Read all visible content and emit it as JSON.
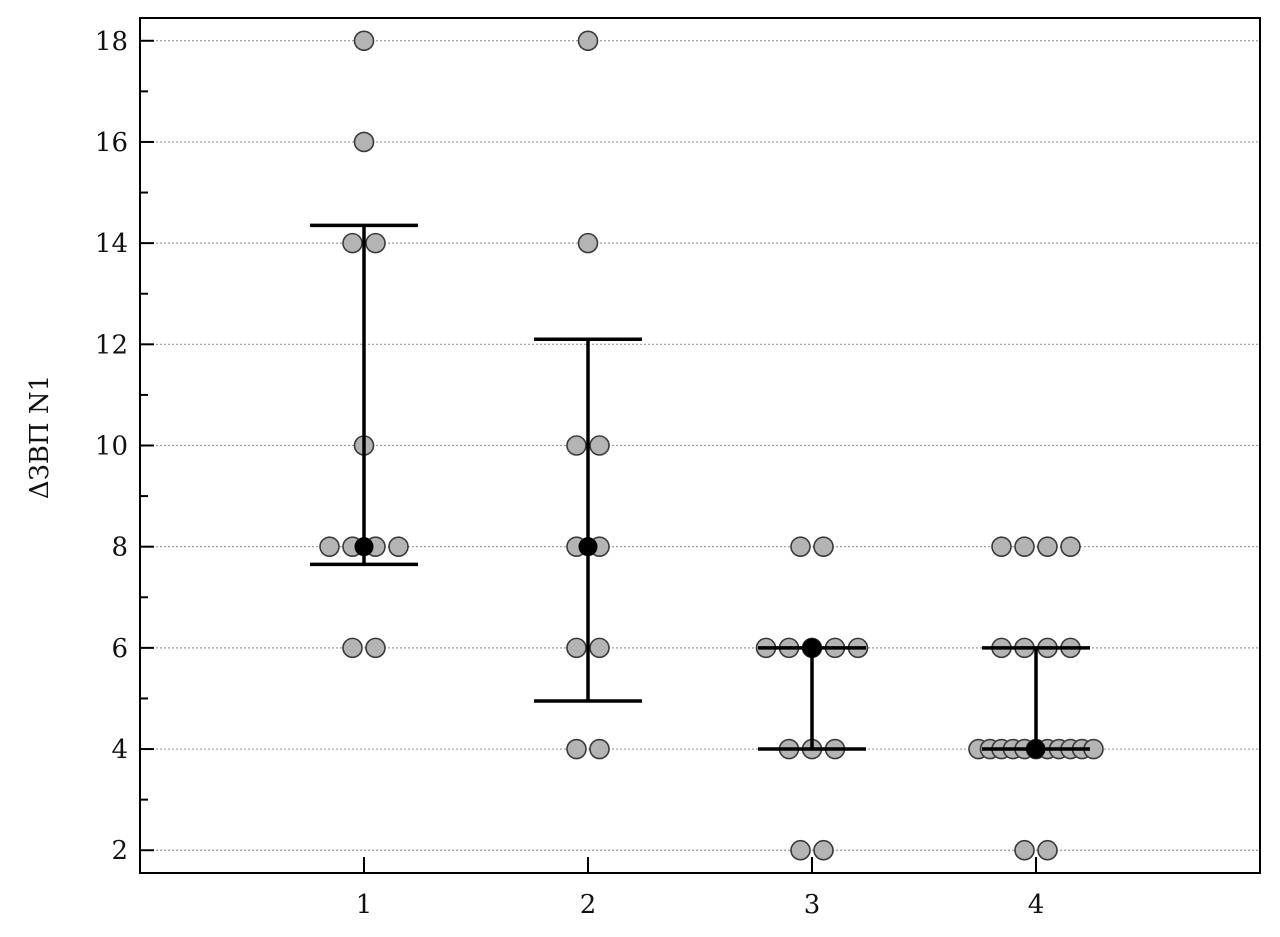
{
  "chart_data": {
    "type": "scatter",
    "ylabel": "ΔЗВП N1",
    "ylim": [
      1.55,
      18.45
    ],
    "yticks_major": [
      2,
      4,
      6,
      8,
      10,
      12,
      14,
      16,
      18
    ],
    "ytick_labels": [
      "2",
      "4",
      "6",
      "8",
      "10",
      "12",
      "14",
      "16",
      "18"
    ],
    "yticks_minor": [
      3,
      5,
      7,
      9,
      11,
      13,
      15,
      17
    ],
    "grid": "horizontal dotted at major ticks",
    "xlim": [
      0.0,
      5.0
    ],
    "categories": [
      "1",
      "2",
      "3",
      "4"
    ],
    "groups": [
      {
        "category": "1",
        "points": [
          {
            "y": 18,
            "offsets": [
              0
            ]
          },
          {
            "y": 16,
            "offsets": [
              0
            ]
          },
          {
            "y": 14,
            "offsets": [
              -0.5,
              0.5
            ]
          },
          {
            "y": 10,
            "offsets": [
              0
            ]
          },
          {
            "y": 8,
            "offsets": [
              -1.5,
              -0.5,
              0.5,
              1.5
            ]
          },
          {
            "y": 6,
            "offsets": [
              -0.5,
              0.5
            ]
          }
        ],
        "median": 8,
        "lower": 7.65,
        "upper": 14.35
      },
      {
        "category": "2",
        "points": [
          {
            "y": 18,
            "offsets": [
              0
            ]
          },
          {
            "y": 14,
            "offsets": [
              0
            ]
          },
          {
            "y": 10,
            "offsets": [
              -0.5,
              0.5
            ]
          },
          {
            "y": 8,
            "offsets": [
              -0.5,
              0.5
            ]
          },
          {
            "y": 6,
            "offsets": [
              -0.5,
              0.5
            ]
          },
          {
            "y": 4,
            "offsets": [
              -0.5,
              0.5
            ]
          }
        ],
        "median": 8,
        "lower": 4.95,
        "upper": 12.1
      },
      {
        "category": "3",
        "points": [
          {
            "y": 8,
            "offsets": [
              -0.5,
              0.5
            ]
          },
          {
            "y": 6,
            "offsets": [
              -2,
              -1,
              0,
              1,
              2
            ]
          },
          {
            "y": 4,
            "offsets": [
              -1,
              0,
              1
            ]
          },
          {
            "y": 2,
            "offsets": [
              -0.5,
              0.5
            ]
          }
        ],
        "median": 6,
        "lower": 4,
        "upper": 6
      },
      {
        "category": "4",
        "points": [
          {
            "y": 8,
            "offsets": [
              -1.5,
              -0.5,
              0.5,
              1.5
            ]
          },
          {
            "y": 6,
            "offsets": [
              -1.5,
              -0.5,
              0.5,
              1.5
            ]
          },
          {
            "y": 4,
            "offsets": [
              -2.5,
              -2,
              -1.5,
              -1,
              -0.5,
              0,
              0.5,
              1,
              1.5,
              2,
              2.5
            ]
          },
          {
            "y": 2,
            "offsets": [
              -0.5,
              0.5
            ]
          }
        ],
        "median": 4,
        "lower": 4,
        "upper": 6
      }
    ],
    "colors": {
      "point_fill": "#b4b4b4",
      "point_stroke": "#3a3a3a",
      "median_fill": "#000000",
      "whisker": "#000000",
      "grid": "#9a9a9a",
      "frame": "#000000"
    }
  }
}
